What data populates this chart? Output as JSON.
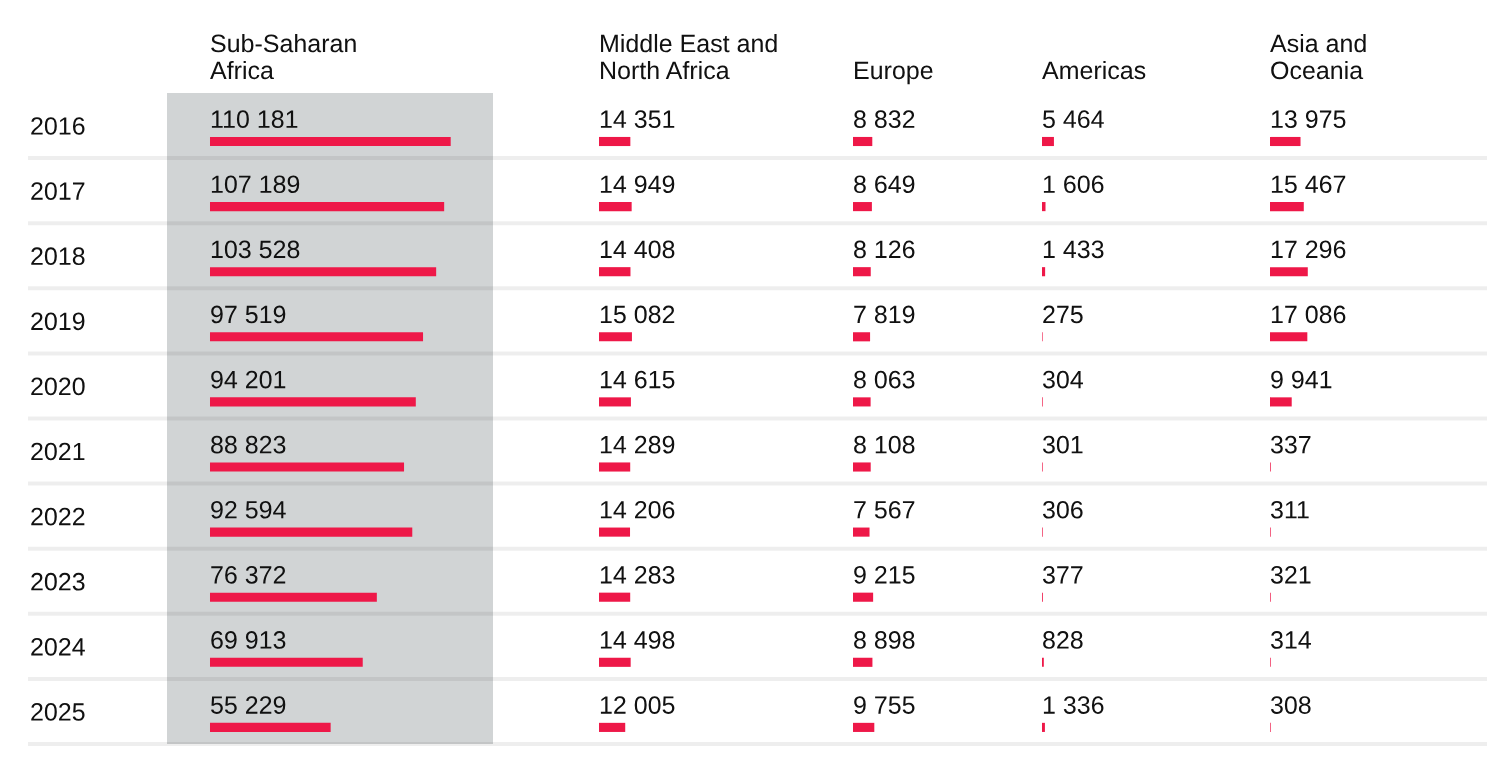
{
  "chart_data": [
    {
      "type": "bar",
      "orientation": "horizontal",
      "title": "Sub-Saharan\nAfrica",
      "categories": [
        "2016",
        "2017",
        "2018",
        "2019",
        "2020",
        "2021",
        "2022",
        "2023",
        "2024",
        "2025"
      ],
      "values": [
        110181,
        107189,
        103528,
        97519,
        94201,
        88823,
        92594,
        76372,
        69913,
        55229
      ],
      "value_labels": [
        "110 181",
        "107 189",
        "103 528",
        "97 519",
        "94 201",
        "88 823",
        "92 594",
        "76 372",
        "69 913",
        "55 229"
      ],
      "color": "#ee1848",
      "grid": "y",
      "tick_labels": "y",
      "bands": [
        {
          "axis": "y",
          "from": "2016",
          "to": "2025",
          "color": "#d1d4d5"
        }
      ]
    },
    {
      "type": "bar",
      "orientation": "horizontal",
      "title": "Middle East and\nNorth Africa",
      "categories": [
        "2016",
        "2017",
        "2018",
        "2019",
        "2020",
        "2021",
        "2022",
        "2023",
        "2024",
        "2025"
      ],
      "values": [
        14351,
        14949,
        14408,
        15082,
        14615,
        14289,
        14206,
        14283,
        14498,
        12005
      ],
      "value_labels": [
        "14 351",
        "14 949",
        "14 408",
        "15 082",
        "14 615",
        "14 289",
        "14 206",
        "14 283",
        "14 498",
        "12 005"
      ],
      "color": "#ee1848",
      "grid": "y",
      "tick_labels": false
    },
    {
      "type": "bar",
      "orientation": "horizontal",
      "title": "Europe",
      "categories": [
        "2016",
        "2017",
        "2018",
        "2019",
        "2020",
        "2021",
        "2022",
        "2023",
        "2024",
        "2025"
      ],
      "values": [
        8832,
        8649,
        8126,
        7819,
        8063,
        8108,
        7567,
        9215,
        8898,
        9755
      ],
      "value_labels": [
        "8 832",
        "8 649",
        "8 126",
        "7 819",
        "8 063",
        "8 108",
        "7 567",
        "9 215",
        "8 898",
        "9 755"
      ],
      "color": "#ee1848",
      "grid": "y",
      "tick_labels": false
    },
    {
      "type": "bar",
      "orientation": "horizontal",
      "title": "Americas",
      "categories": [
        "2016",
        "2017",
        "2018",
        "2019",
        "2020",
        "2021",
        "2022",
        "2023",
        "2024",
        "2025"
      ],
      "values": [
        5464,
        1606,
        1433,
        275,
        304,
        301,
        306,
        377,
        828,
        1336
      ],
      "value_labels": [
        "5 464",
        "1 606",
        "1 433",
        "275",
        "304",
        "301",
        "306",
        "377",
        "828",
        "1 336"
      ],
      "color": "#ee1848",
      "grid": "y",
      "tick_labels": false
    },
    {
      "type": "bar",
      "orientation": "horizontal",
      "title": "Asia and\nOceania",
      "categories": [
        "2016",
        "2017",
        "2018",
        "2019",
        "2020",
        "2021",
        "2022",
        "2023",
        "2024",
        "2025"
      ],
      "values": [
        13975,
        15467,
        17296,
        17086,
        9941,
        337,
        311,
        321,
        314,
        308
      ],
      "value_labels": [
        "13 975",
        "15 467",
        "17 296",
        "17 086",
        "9 941",
        "337",
        "311",
        "321",
        "314",
        "308"
      ],
      "color": "#ee1848",
      "grid": "y",
      "tick_labels": false
    }
  ]
}
